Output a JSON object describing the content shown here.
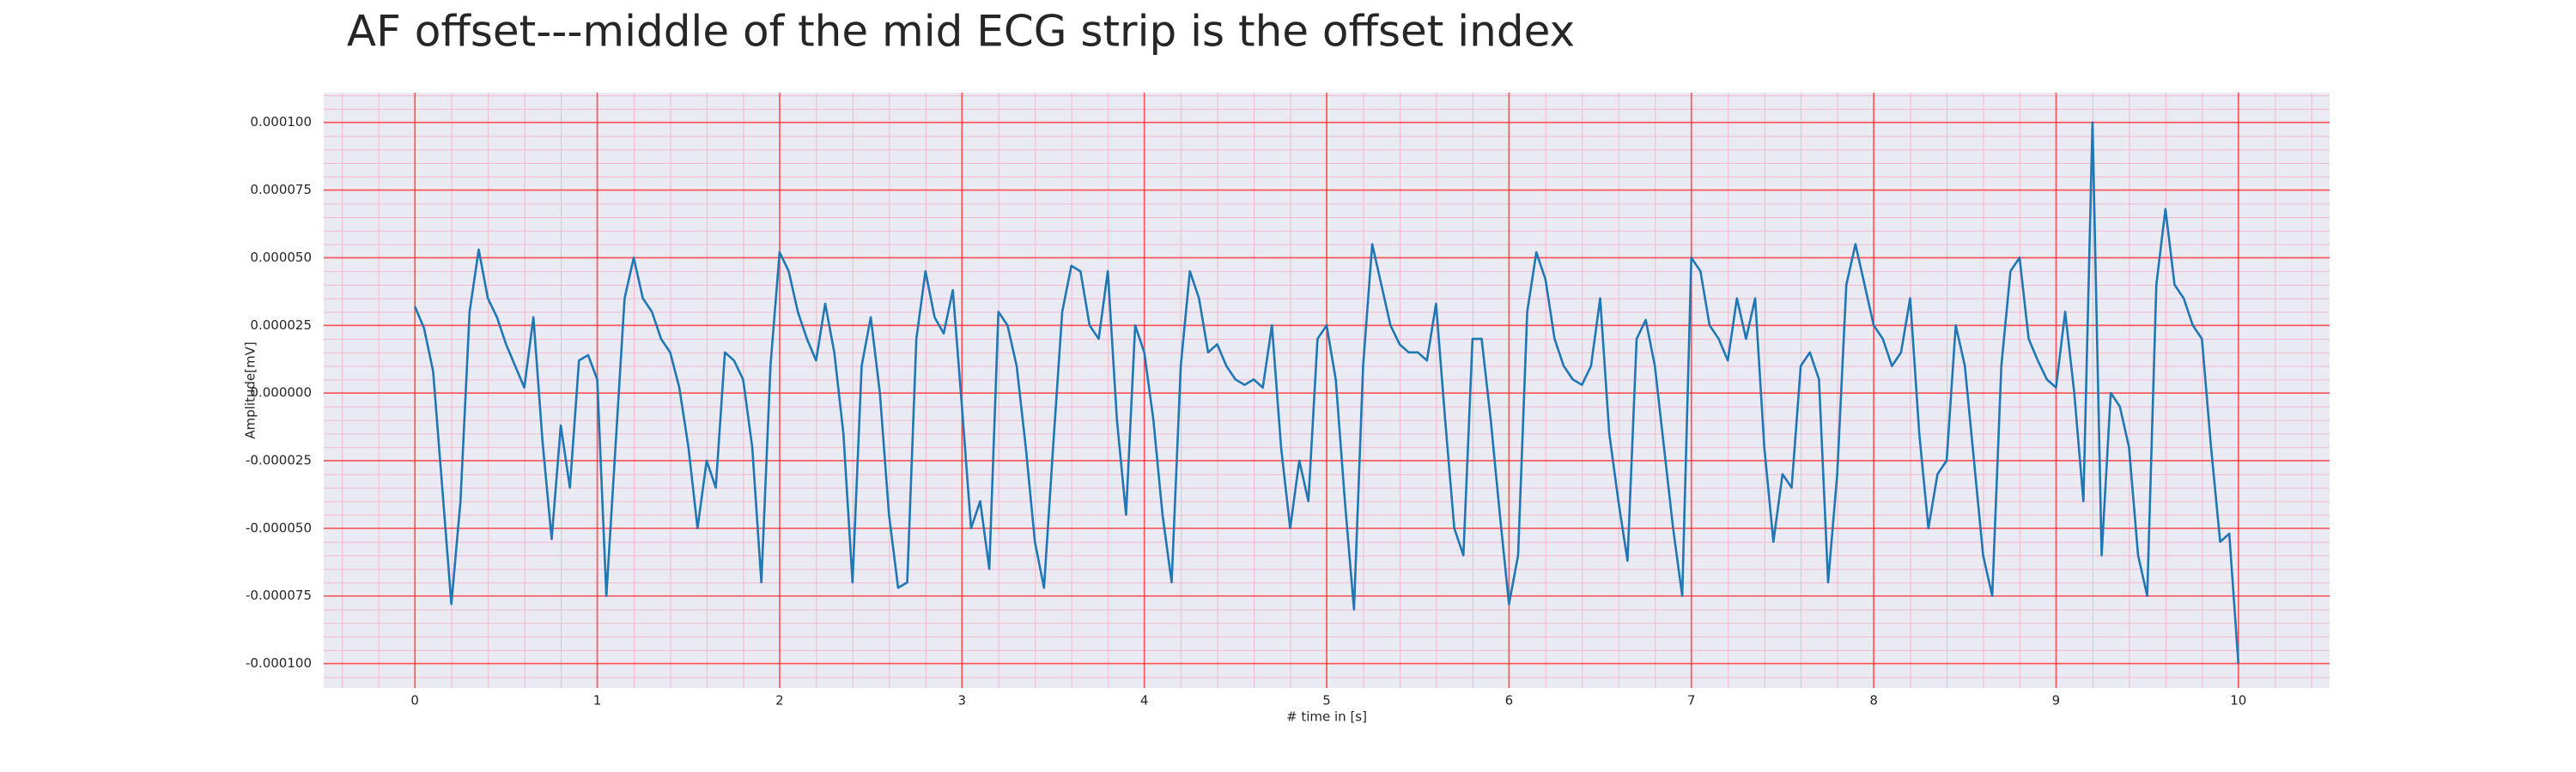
{
  "chart_data": {
    "type": "line",
    "title": "AF offset---middle of the mid ECG strip is the offset index",
    "xlabel": "# time in [s]",
    "ylabel": "Amplitude[mV]",
    "xlim": [
      -0.5,
      10.5
    ],
    "ylim": [
      -0.000109,
      0.000111
    ],
    "xticks": [
      0,
      1,
      2,
      3,
      4,
      5,
      6,
      7,
      8,
      9,
      10
    ],
    "yticks": [
      {
        "value": -0.0001,
        "label": "-0.000100"
      },
      {
        "value": -7.5e-05,
        "label": "-0.000075"
      },
      {
        "value": -5e-05,
        "label": "-0.000050"
      },
      {
        "value": -2.5e-05,
        "label": "-0.000025"
      },
      {
        "value": 0,
        "label": "0.000000"
      },
      {
        "value": 2.5e-05,
        "label": "0.000025"
      },
      {
        "value": 5e-05,
        "label": "0.000050"
      },
      {
        "value": 7.5e-05,
        "label": "0.000075"
      },
      {
        "value": 0.0001,
        "label": "0.000100"
      }
    ],
    "grid": true,
    "grid_color": "#ff2a2a",
    "color": "#1f77b4",
    "x": [
      0,
      0.05,
      0.1,
      0.15,
      0.2,
      0.25,
      0.3,
      0.35,
      0.4,
      0.45,
      0.5,
      0.55,
      0.6,
      0.65,
      0.7,
      0.75,
      0.8,
      0.85,
      0.9,
      0.95,
      1,
      1.05,
      1.1,
      1.15,
      1.2,
      1.25,
      1.3,
      1.35,
      1.4,
      1.45,
      1.5,
      1.55,
      1.6,
      1.65,
      1.7,
      1.75,
      1.8,
      1.85,
      1.9,
      1.95,
      2,
      2.05,
      2.1,
      2.15,
      2.2,
      2.25,
      2.3,
      2.35,
      2.4,
      2.45,
      2.5,
      2.55,
      2.6,
      2.65,
      2.7,
      2.75,
      2.8,
      2.85,
      2.9,
      2.95,
      3,
      3.05,
      3.1,
      3.15,
      3.2,
      3.25,
      3.3,
      3.35,
      3.4,
      3.45,
      3.5,
      3.55,
      3.6,
      3.65,
      3.7,
      3.75,
      3.8,
      3.85,
      3.9,
      3.95,
      4,
      4.05,
      4.1,
      4.15,
      4.2,
      4.25,
      4.3,
      4.35,
      4.4,
      4.45,
      4.5,
      4.55,
      4.6,
      4.65,
      4.7,
      4.75,
      4.8,
      4.85,
      4.9,
      4.95,
      5,
      5.05,
      5.1,
      5.15,
      5.2,
      5.25,
      5.3,
      5.35,
      5.4,
      5.45,
      5.5,
      5.55,
      5.6,
      5.65,
      5.7,
      5.75,
      5.8,
      5.85,
      5.9,
      5.95,
      6,
      6.05,
      6.1,
      6.15,
      6.2,
      6.25,
      6.3,
      6.35,
      6.4,
      6.45,
      6.5,
      6.55,
      6.6,
      6.65,
      6.7,
      6.75,
      6.8,
      6.85,
      6.9,
      6.95,
      7,
      7.05,
      7.1,
      7.15,
      7.2,
      7.25,
      7.3,
      7.35,
      7.4,
      7.45,
      7.5,
      7.55,
      7.6,
      7.65,
      7.7,
      7.75,
      7.8,
      7.85,
      7.9,
      7.95,
      8,
      8.05,
      8.1,
      8.15,
      8.2,
      8.25,
      8.3,
      8.35,
      8.4,
      8.45,
      8.5,
      8.55,
      8.6,
      8.65,
      8.7,
      8.75,
      8.8,
      8.85,
      8.9,
      8.95,
      9,
      9.05,
      9.1,
      9.15,
      9.2,
      9.25,
      9.3,
      9.35,
      9.4,
      9.45,
      9.5,
      9.55,
      9.6,
      9.65,
      9.7,
      9.75,
      9.8,
      9.85,
      9.9,
      9.95,
      10
    ],
    "values": [
      3.2e-05,
      2.4e-05,
      8e-06,
      -3.5e-05,
      -7.8e-05,
      -4e-05,
      3e-05,
      5.3e-05,
      3.5e-05,
      2.8e-05,
      1.8e-05,
      1e-05,
      2e-06,
      2.8e-05,
      -1.8e-05,
      -5.4e-05,
      -1.2e-05,
      -3.5e-05,
      1.2e-05,
      1.4e-05,
      5e-06,
      -7.5e-05,
      -2e-05,
      3.5e-05,
      5e-05,
      3.5e-05,
      3e-05,
      2e-05,
      1.5e-05,
      2e-06,
      -2e-05,
      -5e-05,
      -2.5e-05,
      -3.5e-05,
      1.5e-05,
      1.2e-05,
      5e-06,
      -2e-05,
      -7e-05,
      1e-05,
      5.2e-05,
      4.5e-05,
      3e-05,
      2e-05,
      1.2e-05,
      3.3e-05,
      1.5e-05,
      -1.5e-05,
      -7e-05,
      1e-05,
      2.8e-05,
      0,
      -4.5e-05,
      -7.2e-05,
      -7e-05,
      2e-05,
      4.5e-05,
      2.8e-05,
      2.2e-05,
      3.8e-05,
      -5e-06,
      -5e-05,
      -4e-05,
      -6.5e-05,
      3e-05,
      2.5e-05,
      1e-05,
      -2e-05,
      -5.5e-05,
      -7.2e-05,
      -2e-05,
      3e-05,
      4.7e-05,
      4.5e-05,
      2.5e-05,
      2e-05,
      4.5e-05,
      -1e-05,
      -4.5e-05,
      2.5e-05,
      1.5e-05,
      -1e-05,
      -4.5e-05,
      -7e-05,
      1e-05,
      4.5e-05,
      3.5e-05,
      1.5e-05,
      1.8e-05,
      1e-05,
      5e-06,
      3e-06,
      5e-06,
      2e-06,
      2.5e-05,
      -2e-05,
      -5e-05,
      -2.5e-05,
      -4e-05,
      2e-05,
      2.5e-05,
      5e-06,
      -4e-05,
      -8e-05,
      1e-05,
      5.5e-05,
      4e-05,
      2.5e-05,
      1.8e-05,
      1.5e-05,
      1.5e-05,
      1.2e-05,
      3.3e-05,
      -1e-05,
      -5e-05,
      -6e-05,
      2e-05,
      2e-05,
      -1e-05,
      -4.5e-05,
      -7.8e-05,
      -6e-05,
      3e-05,
      5.2e-05,
      4.2e-05,
      2e-05,
      1e-05,
      5e-06,
      3e-06,
      1e-05,
      3.5e-05,
      -1.5e-05,
      -4e-05,
      -6.2e-05,
      2e-05,
      2.7e-05,
      1e-05,
      -2e-05,
      -5e-05,
      -7.5e-05,
      5e-05,
      4.5e-05,
      2.5e-05,
      2e-05,
      1.2e-05,
      3.5e-05,
      2e-05,
      3.5e-05,
      -2e-05,
      -5.5e-05,
      -3e-05,
      -3.5e-05,
      1e-05,
      1.5e-05,
      5e-06,
      -7e-05,
      -3e-05,
      4e-05,
      5.5e-05,
      4e-05,
      2.5e-05,
      2e-05,
      1e-05,
      1.5e-05,
      3.5e-05,
      -1.5e-05,
      -5e-05,
      -3e-05,
      -2.5e-05,
      2.5e-05,
      1e-05,
      -2.5e-05,
      -6e-05,
      -7.5e-05,
      1e-05,
      4.5e-05,
      5e-05,
      2e-05,
      1.2e-05,
      5e-06,
      2e-06,
      3e-05,
      0,
      -4e-05,
      0.0001,
      -6e-05,
      0,
      -5e-06,
      -2e-05,
      -6e-05,
      -7.5e-05,
      4e-05,
      6.8e-05,
      4e-05,
      3.5e-05,
      2.5e-05,
      2e-05,
      -2e-05,
      -5.5e-05,
      -5.2e-05,
      -0.0001
    ]
  }
}
